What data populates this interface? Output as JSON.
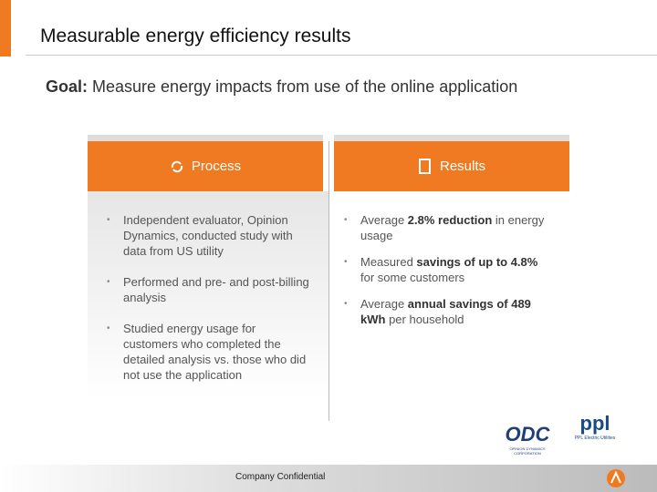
{
  "title": "Measurable energy efficiency results",
  "goal": {
    "label": "Goal:",
    "text": " Measure energy impacts from use of the online application"
  },
  "process": {
    "heading": "Process",
    "bullets": [
      "Independent evaluator, Opinion Dynamics, conducted study with data from US utility",
      "Performed and pre- and post-billing analysis",
      "Studied energy usage for customers who completed the detailed analysis vs. those who did not use the application"
    ]
  },
  "results": {
    "heading": "Results",
    "bullets": [
      [
        {
          "text": "Average "
        },
        {
          "text": "2.8%  reduction",
          "bold": true
        },
        {
          "text": " in energy usage"
        }
      ],
      [
        {
          "text": "Measured "
        },
        {
          "text": "savings of up to 4.8%",
          "bold": true
        },
        {
          "text": " for some customers"
        }
      ],
      [
        {
          "text": "Average "
        },
        {
          "text": "annual savings of 489 kWh",
          "bold": true
        },
        {
          "text": " per household"
        }
      ]
    ]
  },
  "logos": [
    {
      "name": "ODC",
      "caption": "OPINION DYNAMICS CORPORATION"
    },
    {
      "name": "ppl",
      "caption": "PPL Electric Utilities"
    }
  ],
  "footer": "Company Confidential"
}
